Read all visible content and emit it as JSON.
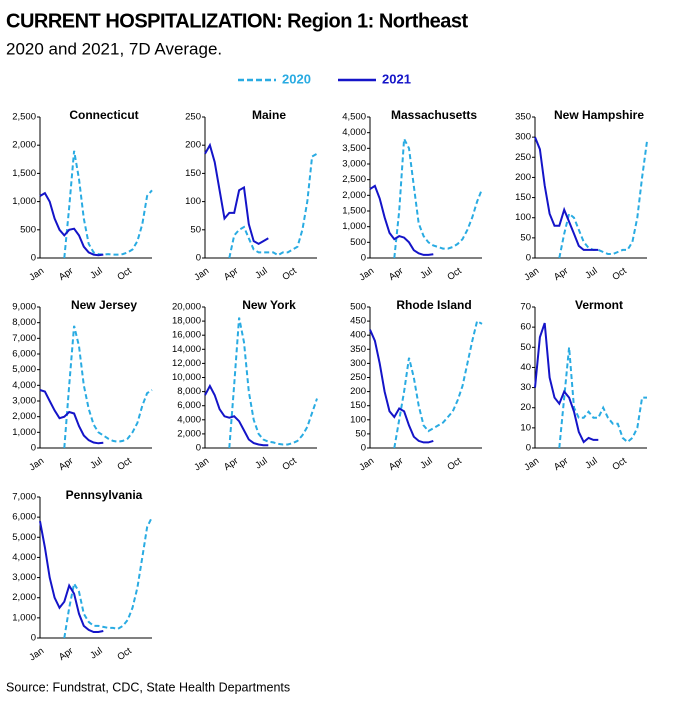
{
  "title": "CURRENT HOSPITALIZATION:  Region 1: Northeast",
  "subtitle": "2020 and 2021, 7D Average.",
  "source": "Source: Fundstrat,  CDC,  State Health Departments",
  "chart_data": [
    {
      "type": "line",
      "title": "Connecticut",
      "categories": [
        "Jan",
        null,
        null,
        null,
        null,
        null,
        "Apr",
        null,
        null,
        null,
        null,
        null,
        "Jul",
        null,
        null,
        null,
        null,
        null,
        "Oct",
        null,
        null,
        null,
        null,
        null
      ],
      "series": [
        {
          "name": "2020",
          "color": "#29abe2",
          "dashed": true,
          "values": [
            null,
            null,
            null,
            null,
            null,
            0,
            900,
            1900,
            1400,
            700,
            250,
            100,
            70,
            60,
            70,
            60,
            60,
            70,
            100,
            150,
            300,
            600,
            1100,
            1200
          ]
        },
        {
          "name": "2021",
          "color": "#1414c8",
          "dashed": false,
          "values": [
            1100,
            1150,
            1000,
            700,
            500,
            400,
            500,
            520,
            400,
            200,
            100,
            60,
            50,
            60,
            null,
            null,
            null,
            null,
            null,
            null,
            null,
            null,
            null,
            null
          ]
        }
      ],
      "ylim": [
        0,
        2500
      ],
      "yticks": [
        0,
        500,
        {
          "value": 1000,
          "label": "1,000"
        },
        {
          "value": 1500,
          "label": "1,500"
        },
        {
          "value": 2000,
          "label": "2,000"
        },
        {
          "value": 2500,
          "label": "2,500"
        }
      ]
    },
    {
      "type": "line",
      "title": "Maine",
      "categories": [
        "Jan",
        null,
        null,
        null,
        null,
        null,
        "Apr",
        null,
        null,
        null,
        null,
        null,
        "Jul",
        null,
        null,
        null,
        null,
        null,
        "Oct",
        null,
        null,
        null,
        null,
        null
      ],
      "series": [
        {
          "color": "#29abe2",
          "dashed": true,
          "values": [
            null,
            null,
            null,
            null,
            null,
            0,
            40,
            50,
            55,
            35,
            15,
            10,
            10,
            10,
            10,
            5,
            10,
            10,
            15,
            20,
            50,
            100,
            180,
            185
          ]
        },
        {
          "color": "#1414c8",
          "dashed": false,
          "values": [
            185,
            200,
            170,
            120,
            70,
            80,
            80,
            120,
            125,
            60,
            30,
            25,
            30,
            35,
            null,
            null,
            null,
            null,
            null,
            null,
            null,
            null,
            null,
            null
          ]
        }
      ],
      "ylim": [
        0,
        250
      ],
      "yticks": [
        0,
        50,
        100,
        150,
        200,
        250
      ]
    },
    {
      "type": "line",
      "title": "Massachusetts",
      "categories": [
        "Jan",
        null,
        null,
        null,
        null,
        null,
        "Apr",
        null,
        null,
        null,
        null,
        null,
        "Jul",
        null,
        null,
        null,
        null,
        null,
        "Oct",
        null,
        null,
        null,
        null,
        null
      ],
      "series": [
        {
          "color": "#29abe2",
          "dashed": true,
          "values": [
            null,
            null,
            null,
            null,
            null,
            0,
            1500,
            3800,
            3500,
            2300,
            1100,
            700,
            500,
            400,
            350,
            300,
            300,
            350,
            450,
            600,
            900,
            1300,
            1800,
            2200
          ]
        },
        {
          "color": "#1414c8",
          "dashed": false,
          "values": [
            2200,
            2300,
            1900,
            1300,
            800,
            600,
            700,
            650,
            500,
            250,
            150,
            100,
            100,
            120,
            null,
            null,
            null,
            null,
            null,
            null,
            null,
            null,
            null,
            null
          ]
        }
      ],
      "ylim": [
        0,
        4500
      ],
      "yticks": [
        0,
        500,
        {
          "value": 1000,
          "label": "1,000"
        },
        {
          "value": 1500,
          "label": "1,500"
        },
        {
          "value": 2000,
          "label": "2,000"
        },
        {
          "value": 2500,
          "label": "2,500"
        },
        {
          "value": 3000,
          "label": "3,000"
        },
        {
          "value": 3500,
          "label": "3,500"
        },
        {
          "value": 4000,
          "label": "4,000"
        },
        {
          "value": 4500,
          "label": "4,500"
        }
      ]
    },
    {
      "type": "line",
      "title": "New Hampshire",
      "categories": [
        "Jan",
        null,
        null,
        null,
        null,
        null,
        "Apr",
        null,
        null,
        null,
        null,
        null,
        "Jul",
        null,
        null,
        null,
        null,
        null,
        "Oct",
        null,
        null,
        null,
        null,
        null
      ],
      "series": [
        {
          "color": "#29abe2",
          "dashed": true,
          "values": [
            null,
            null,
            null,
            null,
            null,
            0,
            60,
            110,
            100,
            70,
            40,
            25,
            20,
            20,
            15,
            10,
            10,
            15,
            20,
            20,
            40,
            100,
            200,
            290
          ]
        },
        {
          "color": "#1414c8",
          "dashed": false,
          "values": [
            300,
            270,
            180,
            110,
            80,
            80,
            120,
            90,
            60,
            30,
            20,
            20,
            20,
            20,
            null,
            null,
            null,
            null,
            null,
            null,
            null,
            null,
            null,
            null
          ]
        }
      ],
      "ylim": [
        0,
        350
      ],
      "yticks": [
        0,
        50,
        100,
        150,
        200,
        250,
        300,
        350
      ]
    },
    {
      "type": "line",
      "title": "New Jersey",
      "categories": [
        "Jan",
        null,
        null,
        null,
        null,
        null,
        "Apr",
        null,
        null,
        null,
        null,
        null,
        "Jul",
        null,
        null,
        null,
        null,
        null,
        "Oct",
        null,
        null,
        null,
        null,
        null
      ],
      "series": [
        {
          "color": "#29abe2",
          "dashed": true,
          "values": [
            null,
            null,
            null,
            null,
            null,
            0,
            4000,
            7800,
            6500,
            4000,
            2500,
            1500,
            1000,
            800,
            600,
            450,
            400,
            450,
            600,
            1000,
            1600,
            2700,
            3500,
            3700
          ]
        },
        {
          "color": "#1414c8",
          "dashed": false,
          "values": [
            3700,
            3600,
            3000,
            2400,
            1900,
            2000,
            2300,
            2200,
            1400,
            800,
            500,
            350,
            300,
            330,
            null,
            null,
            null,
            null,
            null,
            null,
            null,
            null,
            null,
            null
          ]
        }
      ],
      "ylim": [
        0,
        9000
      ],
      "yticks": [
        0,
        {
          "value": 1000,
          "label": "1,000"
        },
        {
          "value": 2000,
          "label": "2,000"
        },
        {
          "value": 3000,
          "label": "3,000"
        },
        {
          "value": 4000,
          "label": "4,000"
        },
        {
          "value": 5000,
          "label": "5,000"
        },
        {
          "value": 6000,
          "label": "6,000"
        },
        {
          "value": 7000,
          "label": "7,000"
        },
        {
          "value": 8000,
          "label": "8,000"
        },
        {
          "value": 9000,
          "label": "9,000"
        }
      ]
    },
    {
      "type": "line",
      "title": "New York",
      "categories": [
        "Jan",
        null,
        null,
        null,
        null,
        null,
        "Apr",
        null,
        null,
        null,
        null,
        null,
        "Jul",
        null,
        null,
        null,
        null,
        null,
        "Oct",
        null,
        null,
        null,
        null,
        null
      ],
      "series": [
        {
          "color": "#29abe2",
          "dashed": true,
          "values": [
            null,
            null,
            null,
            null,
            null,
            0,
            9000,
            18500,
            15000,
            8000,
            4000,
            2000,
            1200,
            900,
            800,
            600,
            500,
            500,
            700,
            1000,
            1800,
            3000,
            5000,
            7000
          ]
        },
        {
          "color": "#1414c8",
          "dashed": false,
          "values": [
            7500,
            8800,
            7500,
            5500,
            4500,
            4300,
            4500,
            3800,
            2500,
            1200,
            700,
            500,
            400,
            400,
            null,
            null,
            null,
            null,
            null,
            null,
            null,
            null,
            null,
            null
          ]
        }
      ],
      "ylim": [
        0,
        20000
      ],
      "yticks": [
        0,
        {
          "value": 2000,
          "label": "2,000"
        },
        {
          "value": 4000,
          "label": "4,000"
        },
        {
          "value": 6000,
          "label": "6,000"
        },
        {
          "value": 8000,
          "label": "8,000"
        },
        {
          "value": 10000,
          "label": "10,000"
        },
        {
          "value": 12000,
          "label": "12,000"
        },
        {
          "value": 14000,
          "label": "14,000"
        },
        {
          "value": 16000,
          "label": "16,000"
        },
        {
          "value": 18000,
          "label": "18,000"
        },
        {
          "value": 20000,
          "label": "20,000"
        }
      ]
    },
    {
      "type": "line",
      "title": "Rhode Island",
      "categories": [
        "Jan",
        null,
        null,
        null,
        null,
        null,
        "Apr",
        null,
        null,
        null,
        null,
        null,
        "Jul",
        null,
        null,
        null,
        null,
        null,
        "Oct",
        null,
        null,
        null,
        null,
        null
      ],
      "series": [
        {
          "color": "#29abe2",
          "dashed": true,
          "values": [
            null,
            null,
            null,
            null,
            null,
            0,
            100,
            200,
            320,
            250,
            150,
            80,
            60,
            70,
            80,
            90,
            110,
            130,
            170,
            220,
            300,
            380,
            450,
            440
          ]
        },
        {
          "color": "#1414c8",
          "dashed": false,
          "values": [
            420,
            380,
            300,
            200,
            130,
            110,
            140,
            130,
            80,
            40,
            25,
            20,
            20,
            25,
            null,
            null,
            null,
            null,
            null,
            null,
            null,
            null,
            null,
            null
          ]
        }
      ],
      "ylim": [
        0,
        500
      ],
      "yticks": [
        0,
        50,
        100,
        150,
        200,
        250,
        300,
        350,
        400,
        450,
        500
      ]
    },
    {
      "type": "line",
      "title": "Vermont",
      "categories": [
        "Jan",
        null,
        null,
        null,
        null,
        null,
        "Apr",
        null,
        null,
        null,
        null,
        null,
        "Jul",
        null,
        null,
        null,
        null,
        null,
        "Oct",
        null,
        null,
        null,
        null,
        null
      ],
      "series": [
        {
          "color": "#29abe2",
          "dashed": true,
          "values": [
            null,
            null,
            null,
            null,
            null,
            0,
            25,
            50,
            20,
            15,
            15,
            18,
            15,
            15,
            20,
            15,
            12,
            12,
            5,
            3,
            5,
            10,
            25,
            25
          ]
        },
        {
          "color": "#1414c8",
          "dashed": false,
          "values": [
            30,
            55,
            62,
            35,
            25,
            22,
            28,
            25,
            18,
            8,
            3,
            5,
            4,
            4,
            null,
            null,
            null,
            null,
            null,
            null,
            null,
            null,
            null,
            null
          ]
        }
      ],
      "ylim": [
        0,
        70
      ],
      "yticks": [
        0,
        10,
        20,
        30,
        40,
        50,
        60,
        70
      ]
    },
    {
      "type": "line",
      "title": "Pennsylvania",
      "categories": [
        "Jan",
        null,
        null,
        null,
        null,
        null,
        "Apr",
        null,
        null,
        null,
        null,
        null,
        "Jul",
        null,
        null,
        null,
        null,
        null,
        "Oct",
        null,
        null,
        null,
        null,
        null
      ],
      "series": [
        {
          "color": "#29abe2",
          "dashed": true,
          "values": [
            null,
            null,
            null,
            null,
            null,
            0,
            1500,
            2700,
            2300,
            1200,
            800,
            600,
            600,
            550,
            500,
            500,
            450,
            600,
            900,
            1500,
            2500,
            4000,
            5500,
            6000
          ]
        },
        {
          "color": "#1414c8",
          "dashed": false,
          "values": [
            5800,
            4500,
            3000,
            2000,
            1500,
            1800,
            2600,
            2200,
            1200,
            600,
            400,
            300,
            300,
            350,
            null,
            null,
            null,
            null,
            null,
            null,
            null,
            null,
            null,
            null
          ]
        }
      ],
      "ylim": [
        0,
        7000
      ],
      "yticks": [
        0,
        {
          "value": 1000,
          "label": "1,000"
        },
        {
          "value": 2000,
          "label": "2,000"
        },
        {
          "value": 3000,
          "label": "3,000"
        },
        {
          "value": 4000,
          "label": "4,000"
        },
        {
          "value": 5000,
          "label": "5,000"
        },
        {
          "value": 6000,
          "label": "6,000"
        },
        {
          "value": 7000,
          "label": "7,000"
        }
      ]
    }
  ]
}
